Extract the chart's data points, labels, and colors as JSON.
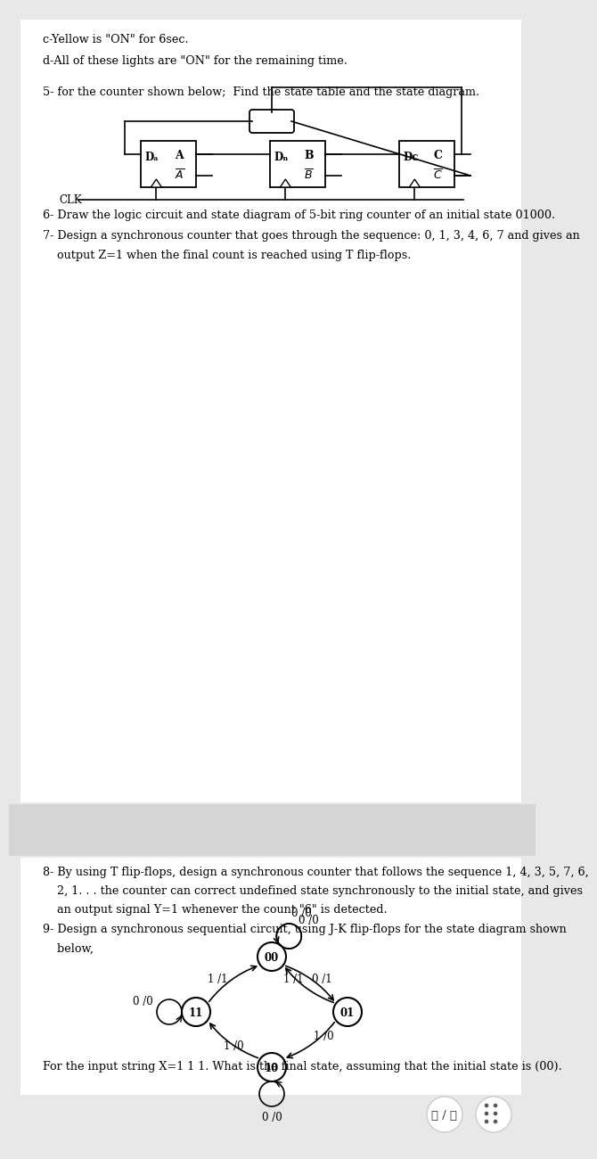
{
  "bg_color": "#e8e8e8",
  "page_bg": "#ffffff",
  "text_color": "#000000",
  "line_c": "c-Yellow is \"ON\" for 6sec.",
  "line_d": "d-All of these lights are \"ON\" for the remaining time.",
  "q5_text": "5- for the counter shown below;  Find the state table and the state diagram.",
  "q6_text": "6- Draw the logic circuit and state diagram of 5-bit ring counter of an initial state 01000.",
  "q7_line1": "7- Design a synchronous counter that goes through the sequence: 0, 1, 3, 4, 6, 7 and gives an",
  "q7_line2": "    output Z=1 when the final count is reached using T flip-flops.",
  "q8_line1": "8- By using T flip-flops, design a synchronous counter that follows the sequence 1, 4, 3, 5, 7, 6,",
  "q8_line2": "    2, 1. . . the counter can correct undefined state synchronously to the initial state, and gives",
  "q8_line3": "    an output signal Y=1 whenever the count \"6\" is detected.",
  "q9_line1": "9- Design a synchronous sequential circuit, using J-K flip-flops for the state diagram shown",
  "q9_line2": "    below,",
  "q9_final": "For the input string X=1 1 1. What is the final state, assuming that the initial state is (00).",
  "page_indicator": "۲ / ۲",
  "font_size": 9.2,
  "font_family": "DejaVu Serif"
}
